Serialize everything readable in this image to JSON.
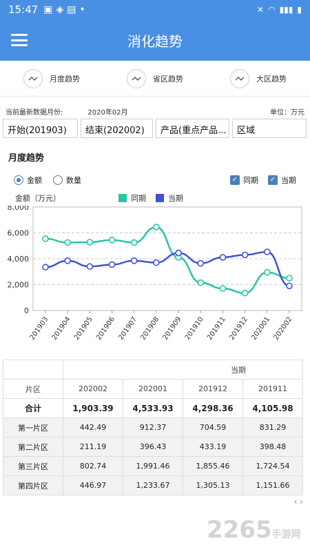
{
  "status": {
    "time": "15:47"
  },
  "appbar": {
    "title": "消化趋势"
  },
  "tabs": [
    {
      "label": "月度趋势"
    },
    {
      "label": "省区趋势"
    },
    {
      "label": "大区趋势"
    }
  ],
  "info": {
    "current_label": "当前最新数据月份:",
    "current_value": "2020年02月",
    "unit": "单位：万元"
  },
  "filters": {
    "start": "开始(201903)",
    "end": "结束(202002)",
    "product": "产品(重点产品...",
    "region": "区域"
  },
  "section": {
    "title": "月度趋势"
  },
  "toggles": {
    "amount": "金额",
    "quantity": "数量",
    "check_prev": "同期",
    "check_curr": "当期"
  },
  "chart_data": {
    "type": "line",
    "ylabel": "金额（万元）",
    "x": [
      "201903",
      "201904",
      "201905",
      "201906",
      "201907",
      "201908",
      "201909",
      "201910",
      "201911",
      "201912",
      "202001",
      "202002"
    ],
    "ylim": [
      0,
      8000
    ],
    "yticks": [
      "0",
      "2,000",
      "4,000",
      "6,000",
      "8,000"
    ],
    "series": [
      {
        "name": "同期",
        "color": "#26c6a6",
        "values": [
          5550,
          5250,
          5280,
          5450,
          5250,
          6450,
          4100,
          2150,
          1700,
          1350,
          2950,
          2500
        ]
      },
      {
        "name": "当期",
        "color": "#4052d6",
        "values": [
          3350,
          3850,
          3400,
          3550,
          3850,
          3700,
          4450,
          3650,
          4110,
          4300,
          4530,
          1900
        ]
      }
    ],
    "grid": true,
    "legend": "top"
  },
  "table": {
    "group_header": "当期",
    "col_header": "片区",
    "months": [
      "202002",
      "202001",
      "201912",
      "201911"
    ],
    "rows": [
      {
        "name": "合计",
        "values": [
          "1,903.39",
          "4,533.93",
          "4,298.36",
          "4,105.98"
        ]
      },
      {
        "name": "第一片区",
        "values": [
          "442.49",
          "912.37",
          "704.59",
          "831.29"
        ]
      },
      {
        "name": "第二片区",
        "values": [
          "211.19",
          "396.43",
          "433.19",
          "398.48"
        ]
      },
      {
        "name": "第三片区",
        "values": [
          "802.74",
          "1,991.46",
          "1,855.46",
          "1,724.54"
        ]
      },
      {
        "name": "第四片区",
        "values": [
          "446.97",
          "1,233.67",
          "1,305.13",
          "1,151.66"
        ]
      }
    ]
  },
  "pager": {
    "text": "‹ ›"
  },
  "watermark": {
    "text": "2265",
    "suffix": "手游网"
  }
}
